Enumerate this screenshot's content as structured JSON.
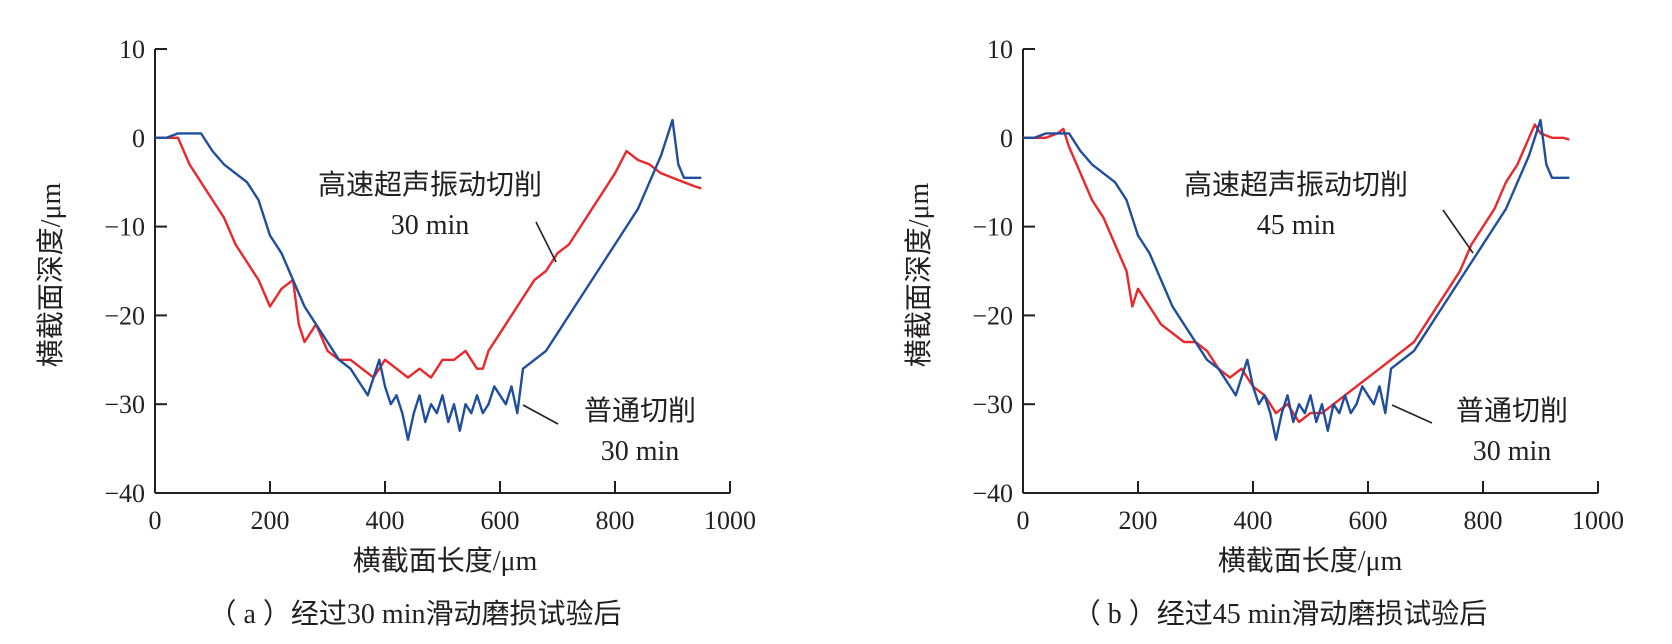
{
  "chart_data": [
    {
      "type": "line",
      "caption": "（ a ）经过30 min滑动磨损试验后",
      "xlabel": "横截面长度/μm",
      "ylabel": "横截面深度/μm",
      "xlim": [
        0,
        1000
      ],
      "ylim": [
        -40,
        10
      ],
      "xticks": [
        "0",
        "200",
        "400",
        "600",
        "800",
        "1000"
      ],
      "yticks": [
        "10",
        "0",
        "−10",
        "−20",
        "−30",
        "−40"
      ],
      "colors": {
        "high_speed_ultrasonic": "#e8282b",
        "conventional": "#1f4e9c"
      },
      "annotations": [
        {
          "lines": [
            "高速超声振动切削",
            "30 min"
          ],
          "target": "high_speed_ultrasonic"
        },
        {
          "lines": [
            "普通切削",
            "30 min"
          ],
          "target": "conventional"
        }
      ],
      "series": [
        {
          "key": "high_speed_ultrasonic",
          "x": [
            0,
            20,
            40,
            60,
            80,
            100,
            120,
            140,
            160,
            180,
            200,
            220,
            240,
            250,
            260,
            280,
            300,
            320,
            340,
            360,
            380,
            400,
            420,
            440,
            460,
            480,
            500,
            520,
            540,
            560,
            570,
            580,
            600,
            620,
            640,
            660,
            680,
            700,
            720,
            740,
            760,
            780,
            800,
            820,
            840,
            860,
            880,
            900,
            920,
            940,
            950
          ],
          "y": [
            0,
            0,
            0,
            -3,
            -5,
            -7,
            -9,
            -12,
            -14,
            -16,
            -19,
            -17,
            -16,
            -21,
            -23,
            -21,
            -24,
            -25,
            -25,
            -26,
            -27,
            -25,
            -26,
            -27,
            -26,
            -27,
            -25,
            -25,
            -24,
            -26,
            -26,
            -24,
            -22,
            -20,
            -18,
            -16,
            -15,
            -13,
            -12,
            -10,
            -8,
            -6,
            -4,
            -1.5,
            -2.5,
            -3,
            -4,
            -4.5,
            -5,
            -5.5,
            -5.7
          ]
        },
        {
          "key": "conventional",
          "x": [
            0,
            20,
            40,
            60,
            80,
            100,
            120,
            140,
            160,
            180,
            200,
            220,
            240,
            260,
            280,
            300,
            320,
            340,
            360,
            370,
            380,
            390,
            400,
            410,
            420,
            430,
            440,
            450,
            460,
            470,
            480,
            490,
            500,
            510,
            520,
            530,
            540,
            550,
            560,
            570,
            580,
            590,
            600,
            610,
            620,
            630,
            640,
            660,
            680,
            700,
            720,
            740,
            760,
            780,
            800,
            820,
            840,
            860,
            880,
            890,
            900,
            910,
            920,
            940,
            950
          ],
          "y": [
            0,
            0,
            0.5,
            0.5,
            0.5,
            -1.5,
            -3,
            -4,
            -5,
            -7,
            -11,
            -13,
            -16,
            -19,
            -21,
            -23,
            -25,
            -26,
            -28,
            -29,
            -27,
            -25,
            -28,
            -30,
            -29,
            -31,
            -34,
            -31,
            -29,
            -32,
            -30,
            -31,
            -29,
            -32,
            -30,
            -33,
            -30,
            -31,
            -29,
            -31,
            -30,
            -28,
            -29,
            -30,
            -28,
            -31,
            -26,
            -25,
            -24,
            -22,
            -20,
            -18,
            -16,
            -14,
            -12,
            -10,
            -8,
            -5,
            -2,
            0,
            2,
            -3,
            -4.5,
            -4.5,
            -4.5
          ]
        }
      ]
    },
    {
      "type": "line",
      "caption": "（ b ）经过45 min滑动磨损试验后",
      "xlabel": "横截面长度/μm",
      "ylabel": "横截面深度/μm",
      "xlim": [
        0,
        1000
      ],
      "ylim": [
        -40,
        10
      ],
      "xticks": [
        "0",
        "200",
        "400",
        "600",
        "800",
        "1000"
      ],
      "yticks": [
        "10",
        "0",
        "−10",
        "−20",
        "−30",
        "−40"
      ],
      "colors": {
        "high_speed_ultrasonic": "#e8282b",
        "conventional": "#1f4e9c"
      },
      "annotations": [
        {
          "lines": [
            "高速超声振动切削",
            "45 min"
          ],
          "target": "high_speed_ultrasonic"
        },
        {
          "lines": [
            "普通切削",
            "30 min"
          ],
          "target": "conventional"
        }
      ],
      "series": [
        {
          "key": "high_speed_ultrasonic",
          "x": [
            0,
            20,
            40,
            60,
            70,
            80,
            100,
            120,
            140,
            160,
            180,
            190,
            200,
            220,
            240,
            260,
            280,
            300,
            320,
            340,
            360,
            380,
            400,
            420,
            440,
            460,
            480,
            500,
            520,
            540,
            560,
            580,
            600,
            620,
            640,
            660,
            680,
            700,
            720,
            740,
            760,
            780,
            800,
            820,
            840,
            860,
            880,
            890,
            900,
            920,
            940,
            950
          ],
          "y": [
            0,
            0,
            0,
            0.5,
            1,
            -1,
            -4,
            -7,
            -9,
            -12,
            -15,
            -19,
            -17,
            -19,
            -21,
            -22,
            -23,
            -23,
            -24,
            -26,
            -27,
            -26,
            -28,
            -29,
            -31,
            -30,
            -32,
            -31,
            -31,
            -30,
            -29,
            -28,
            -27,
            -26,
            -25,
            -24,
            -23,
            -21,
            -19,
            -17,
            -15,
            -12,
            -10,
            -8,
            -5,
            -3,
            0,
            1.5,
            0.5,
            0,
            0,
            -0.2
          ]
        },
        {
          "key": "conventional",
          "x": [
            0,
            20,
            40,
            60,
            80,
            100,
            120,
            140,
            160,
            180,
            200,
            220,
            240,
            260,
            280,
            300,
            320,
            340,
            360,
            370,
            380,
            390,
            400,
            410,
            420,
            430,
            440,
            450,
            460,
            470,
            480,
            490,
            500,
            510,
            520,
            530,
            540,
            550,
            560,
            570,
            580,
            590,
            600,
            610,
            620,
            630,
            640,
            660,
            680,
            700,
            720,
            740,
            760,
            780,
            800,
            820,
            840,
            860,
            880,
            890,
            900,
            910,
            920,
            940,
            950
          ],
          "y": [
            0,
            0,
            0.5,
            0.5,
            0.5,
            -1.5,
            -3,
            -4,
            -5,
            -7,
            -11,
            -13,
            -16,
            -19,
            -21,
            -23,
            -25,
            -26,
            -28,
            -29,
            -27,
            -25,
            -28,
            -30,
            -29,
            -31,
            -34,
            -31,
            -29,
            -32,
            -30,
            -31,
            -29,
            -32,
            -30,
            -33,
            -30,
            -31,
            -29,
            -31,
            -30,
            -28,
            -29,
            -30,
            -28,
            -31,
            -26,
            -25,
            -24,
            -22,
            -20,
            -18,
            -16,
            -14,
            -12,
            -10,
            -8,
            -5,
            -2,
            0,
            2,
            -3,
            -4.5,
            -4.5,
            -4.5
          ]
        }
      ]
    }
  ]
}
